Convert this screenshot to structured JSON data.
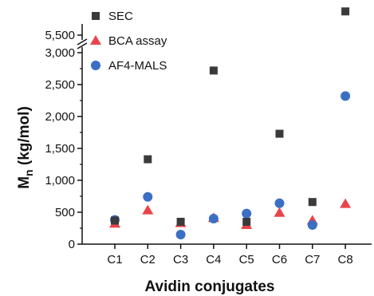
{
  "chart_data": {
    "type": "scatter",
    "categories": [
      "C1",
      "C2",
      "C3",
      "C4",
      "C5",
      "C6",
      "C7",
      "C8"
    ],
    "xlabel": "Avidin conjugates",
    "ylabel_main": "M",
    "ylabel_sub": "n",
    "ylabel_rest": " (kg/mol)",
    "ylim": [
      0,
      3000
    ],
    "axis_break": {
      "lower_max": 3000,
      "upper_value": 5500
    },
    "yticks": [
      {
        "value": 0,
        "label": "0"
      },
      {
        "value": 500,
        "label": "500"
      },
      {
        "value": 1000,
        "label": "1,000"
      },
      {
        "value": 1500,
        "label": "1,500"
      },
      {
        "value": 2000,
        "label": "2,000"
      },
      {
        "value": 2500,
        "label": "2,500"
      },
      {
        "value": 3000,
        "label": "3,000"
      },
      {
        "value": 5500,
        "label": "5,500"
      }
    ],
    "grid": false,
    "legend_position": "top-left",
    "series": [
      {
        "name": "SEC",
        "marker": "square",
        "color": "#3a3a3a",
        "values": [
          370,
          1330,
          350,
          2720,
          350,
          1730,
          660,
          5950
        ]
      },
      {
        "name": "BCA assay",
        "marker": "triangle",
        "color": "#e8454a",
        "values": [
          320,
          530,
          330,
          410,
          300,
          490,
          370,
          630
        ]
      },
      {
        "name": "AF4-MALS",
        "marker": "circle",
        "color": "#3a6fc4",
        "values": [
          380,
          740,
          150,
          400,
          480,
          640,
          300,
          2320
        ]
      }
    ]
  }
}
